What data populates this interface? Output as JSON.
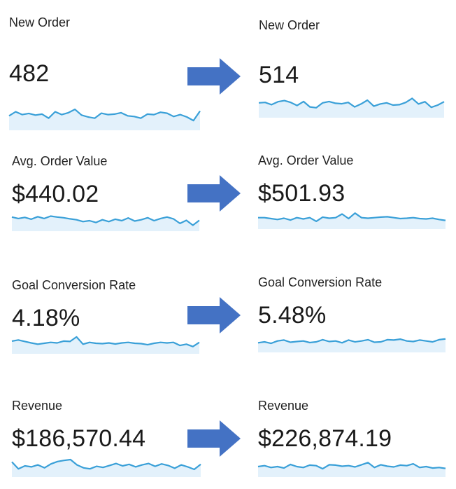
{
  "colors": {
    "sparkline_line": "#3aa0d8",
    "sparkline_fill": "#e3f1fb",
    "arrow": "#4472c4"
  },
  "icons": {
    "arrow": "arrow-right-icon"
  },
  "cards": {
    "before_new_order": {
      "label": "New Order",
      "value": "482",
      "trend": [
        0.55,
        0.72,
        0.6,
        0.65,
        0.58,
        0.62,
        0.45,
        0.72,
        0.6,
        0.68,
        0.82,
        0.58,
        0.5,
        0.45,
        0.66,
        0.6,
        0.62,
        0.68,
        0.55,
        0.52,
        0.45,
        0.62,
        0.6,
        0.7,
        0.66,
        0.52,
        0.6,
        0.5,
        0.35,
        0.75
      ]
    },
    "after_new_order": {
      "label": "New Order",
      "value": "514",
      "trend": [
        0.6,
        0.62,
        0.52,
        0.65,
        0.7,
        0.62,
        0.48,
        0.66,
        0.42,
        0.38,
        0.6,
        0.66,
        0.58,
        0.56,
        0.62,
        0.42,
        0.55,
        0.72,
        0.45,
        0.55,
        0.6,
        0.5,
        0.52,
        0.62,
        0.8,
        0.55,
        0.65,
        0.4,
        0.5,
        0.65
      ]
    },
    "before_avg_order_value": {
      "label": "Avg. Order Value",
      "value": "$440.02",
      "trend": [
        0.7,
        0.62,
        0.68,
        0.58,
        0.72,
        0.62,
        0.75,
        0.7,
        0.66,
        0.6,
        0.55,
        0.45,
        0.5,
        0.4,
        0.55,
        0.45,
        0.58,
        0.5,
        0.65,
        0.48,
        0.55,
        0.66,
        0.5,
        0.62,
        0.7,
        0.6,
        0.35,
        0.52,
        0.25,
        0.52
      ]
    },
    "after_avg_order_value": {
      "label": "Avg. Order Value",
      "value": "$501.93",
      "trend": [
        0.55,
        0.55,
        0.5,
        0.45,
        0.52,
        0.42,
        0.55,
        0.48,
        0.55,
        0.35,
        0.58,
        0.52,
        0.55,
        0.75,
        0.5,
        0.8,
        0.55,
        0.52,
        0.55,
        0.58,
        0.6,
        0.55,
        0.5,
        0.52,
        0.55,
        0.5,
        0.48,
        0.52,
        0.45,
        0.4
      ]
    },
    "before_goal_conversion_rate": {
      "label": "Goal Conversion Rate",
      "value": "4.18%",
      "trend": [
        0.62,
        0.68,
        0.6,
        0.52,
        0.45,
        0.5,
        0.55,
        0.52,
        0.62,
        0.6,
        0.85,
        0.45,
        0.55,
        0.5,
        0.48,
        0.52,
        0.46,
        0.52,
        0.55,
        0.5,
        0.48,
        0.42,
        0.5,
        0.55,
        0.52,
        0.55,
        0.38,
        0.45,
        0.32,
        0.55
      ]
    },
    "after_goal_conversion_rate": {
      "label": "Goal Conversion Rate",
      "value": "5.48%",
      "trend": [
        0.45,
        0.5,
        0.42,
        0.55,
        0.6,
        0.48,
        0.52,
        0.55,
        0.46,
        0.5,
        0.62,
        0.52,
        0.55,
        0.45,
        0.6,
        0.5,
        0.55,
        0.62,
        0.48,
        0.5,
        0.62,
        0.6,
        0.65,
        0.55,
        0.52,
        0.6,
        0.55,
        0.5,
        0.62,
        0.66
      ]
    },
    "before_revenue": {
      "label": "Revenue",
      "value": "$186,570.44",
      "trend": [
        0.7,
        0.35,
        0.5,
        0.45,
        0.55,
        0.4,
        0.6,
        0.72,
        0.78,
        0.82,
        0.55,
        0.4,
        0.35,
        0.48,
        0.42,
        0.52,
        0.62,
        0.5,
        0.58,
        0.45,
        0.55,
        0.62,
        0.48,
        0.6,
        0.52,
        0.38,
        0.55,
        0.45,
        0.32,
        0.58
      ]
    },
    "after_revenue": {
      "label": "Revenue",
      "value": "$226,874.19",
      "trend": [
        0.5,
        0.55,
        0.45,
        0.5,
        0.42,
        0.62,
        0.5,
        0.45,
        0.58,
        0.55,
        0.38,
        0.6,
        0.58,
        0.52,
        0.55,
        0.48,
        0.6,
        0.72,
        0.45,
        0.6,
        0.52,
        0.48,
        0.58,
        0.55,
        0.65,
        0.45,
        0.5,
        0.42,
        0.45,
        0.4
      ]
    }
  }
}
